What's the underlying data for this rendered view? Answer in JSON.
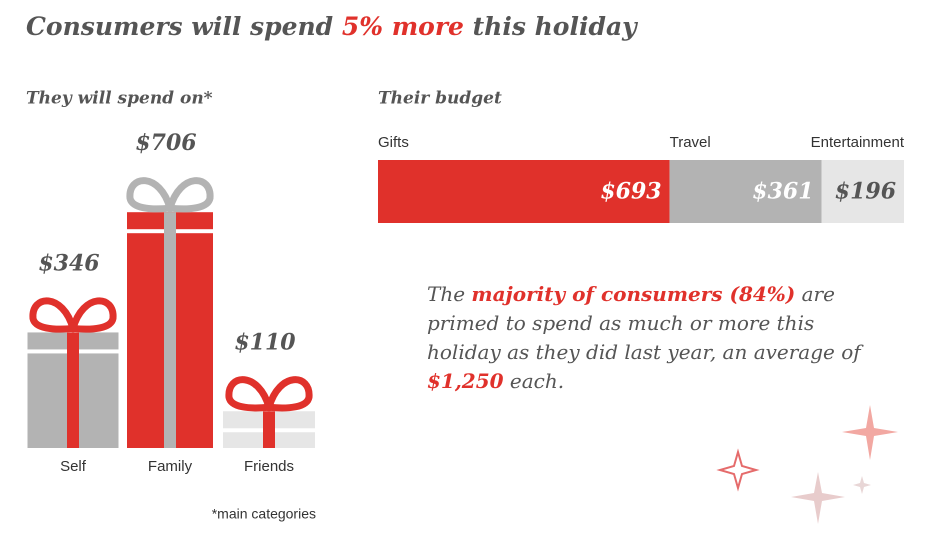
{
  "title_parts": [
    "Consumers will spend ",
    "5% more",
    " this holiday"
  ],
  "chart_data": [
    {
      "type": "gift",
      "subtitle": "They will spend on*",
      "categories": [
        "Self",
        "Family",
        "Friends"
      ],
      "values": [
        346,
        706,
        110
      ],
      "value_labels": [
        "$346",
        "$706",
        "$110"
      ],
      "colors": [
        "#b3b3b3",
        "#e0312b",
        "#e6e6e6"
      ],
      "ribbon_colors": [
        "#e0312b",
        "#b3b3b3",
        "#e0312b"
      ]
    },
    {
      "type": "stacked_bar",
      "subtitle": "Their budget",
      "series": [
        {
          "name": "Gifts",
          "color": "#e0312b",
          "values": [
            693
          ],
          "value_labels": [
            "$693"
          ]
        },
        {
          "name": "Travel",
          "color": "#b3b3b3",
          "values": [
            361
          ],
          "value_labels": [
            "$361"
          ]
        },
        {
          "name": "Entertainment",
          "color": "#e6e6e6",
          "values": [
            196
          ],
          "value_labels": [
            "$196"
          ]
        }
      ]
    }
  ],
  "callout_parts": [
    "The ",
    "majority of consumers (84%)",
    " are primed to spend as much or more this holiday as they did last year, an average of ",
    "$1,250",
    " each."
  ],
  "footnote": "*main categories"
}
